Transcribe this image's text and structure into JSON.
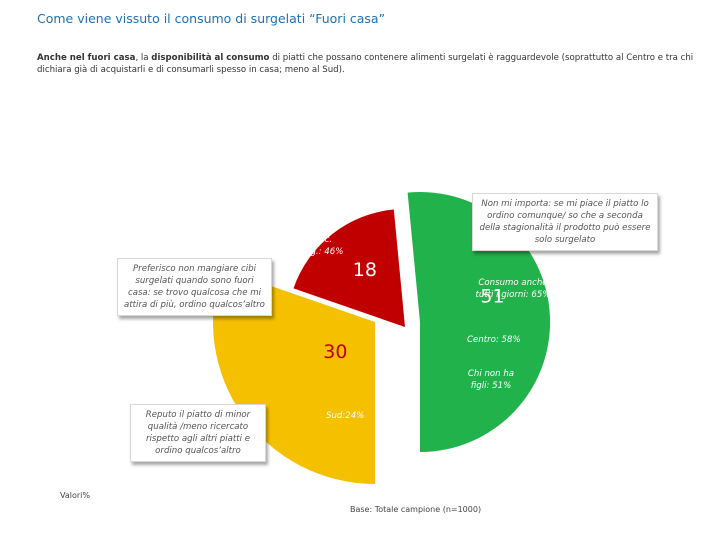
{
  "title": "Come viene vissuto il consumo di surgelati “Fuori casa”",
  "subtitle": {
    "bold_lead": "Anche nel fuori casa",
    "part1": ", la ",
    "bold_mid": "disponibilità al consumo",
    "part2": " di piatti che possano contenere alimenti surgelati è ragguardevole (soprattutto al Centro e tra chi dichiara già di acquistarli e di consumarli spesso in casa; meno al Sud)."
  },
  "chart_data": {
    "type": "pie",
    "slices": [
      {
        "label": "Preferisco non mangiare cibi surgelati quando sono fuori casa: se trovo qualcosa che mi attira di più, ordino qualcos’altro",
        "value": 30,
        "value_label": "30",
        "color": "#f5c000"
      },
      {
        "label": "Reputo il piatto di minor qualità /meno ricercato rispetto agli altri piatti e ordino qualcos’altro",
        "value": 18,
        "value_label": "18",
        "color": "#c00000"
      },
      {
        "label": "Non mi importa: se mi piace il piatto lo ordino comunque/ so che a seconda della stagionalità il prodotto può essere solo surgelato",
        "value": 51,
        "value_label": "51",
        "color": "#22b24c"
      }
    ],
    "annotations": [
      {
        "text": "Medio e basso c. surg.: 46%",
        "color": "#ffffff"
      },
      {
        "text": "Consumo anche tutti i giorni: 65%",
        "color": "#ffffff"
      },
      {
        "text": "Centro: 58%",
        "color": "#ffffff"
      },
      {
        "text": "Chi non ha figli: 51%",
        "color": "#ffffff"
      },
      {
        "text": "Sud:24%",
        "color": "#ffffff"
      }
    ],
    "note": "Valori%",
    "base": "Base: Totale campione (n=1000)"
  }
}
